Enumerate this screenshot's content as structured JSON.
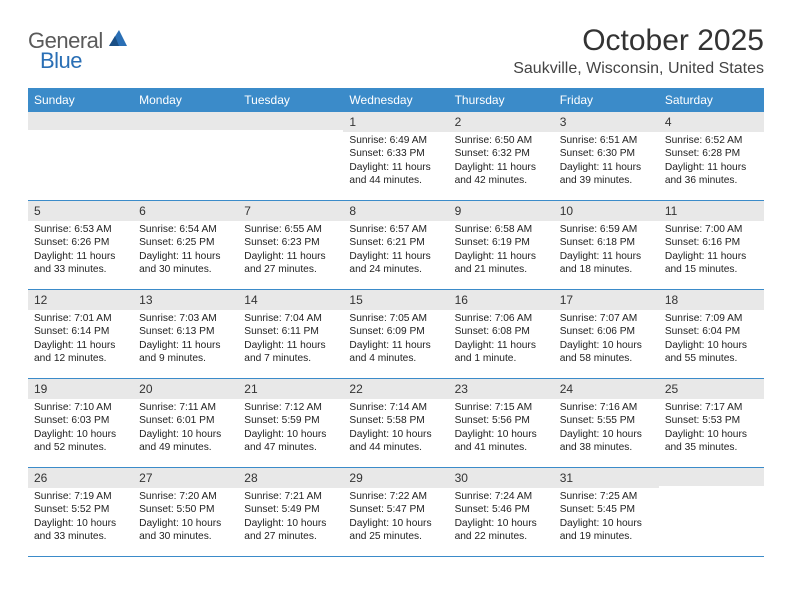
{
  "brand": {
    "general": "General",
    "blue": "Blue"
  },
  "title": "October 2025",
  "location": "Saukville, Wisconsin, United States",
  "colors": {
    "headerBar": "#3b8bc9",
    "dayNumBg": "#e8e8e8",
    "weekDivider": "#3b8bc9",
    "text": "#222222",
    "logoGray": "#5a5a5a",
    "logoBlue": "#2a6fb5"
  },
  "dayNames": [
    "Sunday",
    "Monday",
    "Tuesday",
    "Wednesday",
    "Thursday",
    "Friday",
    "Saturday"
  ],
  "weeks": [
    [
      {
        "num": "",
        "sr": "",
        "ss": "",
        "dl": ""
      },
      {
        "num": "",
        "sr": "",
        "ss": "",
        "dl": ""
      },
      {
        "num": "",
        "sr": "",
        "ss": "",
        "dl": ""
      },
      {
        "num": "1",
        "sr": "Sunrise: 6:49 AM",
        "ss": "Sunset: 6:33 PM",
        "dl": "Daylight: 11 hours and 44 minutes."
      },
      {
        "num": "2",
        "sr": "Sunrise: 6:50 AM",
        "ss": "Sunset: 6:32 PM",
        "dl": "Daylight: 11 hours and 42 minutes."
      },
      {
        "num": "3",
        "sr": "Sunrise: 6:51 AM",
        "ss": "Sunset: 6:30 PM",
        "dl": "Daylight: 11 hours and 39 minutes."
      },
      {
        "num": "4",
        "sr": "Sunrise: 6:52 AM",
        "ss": "Sunset: 6:28 PM",
        "dl": "Daylight: 11 hours and 36 minutes."
      }
    ],
    [
      {
        "num": "5",
        "sr": "Sunrise: 6:53 AM",
        "ss": "Sunset: 6:26 PM",
        "dl": "Daylight: 11 hours and 33 minutes."
      },
      {
        "num": "6",
        "sr": "Sunrise: 6:54 AM",
        "ss": "Sunset: 6:25 PM",
        "dl": "Daylight: 11 hours and 30 minutes."
      },
      {
        "num": "7",
        "sr": "Sunrise: 6:55 AM",
        "ss": "Sunset: 6:23 PM",
        "dl": "Daylight: 11 hours and 27 minutes."
      },
      {
        "num": "8",
        "sr": "Sunrise: 6:57 AM",
        "ss": "Sunset: 6:21 PM",
        "dl": "Daylight: 11 hours and 24 minutes."
      },
      {
        "num": "9",
        "sr": "Sunrise: 6:58 AM",
        "ss": "Sunset: 6:19 PM",
        "dl": "Daylight: 11 hours and 21 minutes."
      },
      {
        "num": "10",
        "sr": "Sunrise: 6:59 AM",
        "ss": "Sunset: 6:18 PM",
        "dl": "Daylight: 11 hours and 18 minutes."
      },
      {
        "num": "11",
        "sr": "Sunrise: 7:00 AM",
        "ss": "Sunset: 6:16 PM",
        "dl": "Daylight: 11 hours and 15 minutes."
      }
    ],
    [
      {
        "num": "12",
        "sr": "Sunrise: 7:01 AM",
        "ss": "Sunset: 6:14 PM",
        "dl": "Daylight: 11 hours and 12 minutes."
      },
      {
        "num": "13",
        "sr": "Sunrise: 7:03 AM",
        "ss": "Sunset: 6:13 PM",
        "dl": "Daylight: 11 hours and 9 minutes."
      },
      {
        "num": "14",
        "sr": "Sunrise: 7:04 AM",
        "ss": "Sunset: 6:11 PM",
        "dl": "Daylight: 11 hours and 7 minutes."
      },
      {
        "num": "15",
        "sr": "Sunrise: 7:05 AM",
        "ss": "Sunset: 6:09 PM",
        "dl": "Daylight: 11 hours and 4 minutes."
      },
      {
        "num": "16",
        "sr": "Sunrise: 7:06 AM",
        "ss": "Sunset: 6:08 PM",
        "dl": "Daylight: 11 hours and 1 minute."
      },
      {
        "num": "17",
        "sr": "Sunrise: 7:07 AM",
        "ss": "Sunset: 6:06 PM",
        "dl": "Daylight: 10 hours and 58 minutes."
      },
      {
        "num": "18",
        "sr": "Sunrise: 7:09 AM",
        "ss": "Sunset: 6:04 PM",
        "dl": "Daylight: 10 hours and 55 minutes."
      }
    ],
    [
      {
        "num": "19",
        "sr": "Sunrise: 7:10 AM",
        "ss": "Sunset: 6:03 PM",
        "dl": "Daylight: 10 hours and 52 minutes."
      },
      {
        "num": "20",
        "sr": "Sunrise: 7:11 AM",
        "ss": "Sunset: 6:01 PM",
        "dl": "Daylight: 10 hours and 49 minutes."
      },
      {
        "num": "21",
        "sr": "Sunrise: 7:12 AM",
        "ss": "Sunset: 5:59 PM",
        "dl": "Daylight: 10 hours and 47 minutes."
      },
      {
        "num": "22",
        "sr": "Sunrise: 7:14 AM",
        "ss": "Sunset: 5:58 PM",
        "dl": "Daylight: 10 hours and 44 minutes."
      },
      {
        "num": "23",
        "sr": "Sunrise: 7:15 AM",
        "ss": "Sunset: 5:56 PM",
        "dl": "Daylight: 10 hours and 41 minutes."
      },
      {
        "num": "24",
        "sr": "Sunrise: 7:16 AM",
        "ss": "Sunset: 5:55 PM",
        "dl": "Daylight: 10 hours and 38 minutes."
      },
      {
        "num": "25",
        "sr": "Sunrise: 7:17 AM",
        "ss": "Sunset: 5:53 PM",
        "dl": "Daylight: 10 hours and 35 minutes."
      }
    ],
    [
      {
        "num": "26",
        "sr": "Sunrise: 7:19 AM",
        "ss": "Sunset: 5:52 PM",
        "dl": "Daylight: 10 hours and 33 minutes."
      },
      {
        "num": "27",
        "sr": "Sunrise: 7:20 AM",
        "ss": "Sunset: 5:50 PM",
        "dl": "Daylight: 10 hours and 30 minutes."
      },
      {
        "num": "28",
        "sr": "Sunrise: 7:21 AM",
        "ss": "Sunset: 5:49 PM",
        "dl": "Daylight: 10 hours and 27 minutes."
      },
      {
        "num": "29",
        "sr": "Sunrise: 7:22 AM",
        "ss": "Sunset: 5:47 PM",
        "dl": "Daylight: 10 hours and 25 minutes."
      },
      {
        "num": "30",
        "sr": "Sunrise: 7:24 AM",
        "ss": "Sunset: 5:46 PM",
        "dl": "Daylight: 10 hours and 22 minutes."
      },
      {
        "num": "31",
        "sr": "Sunrise: 7:25 AM",
        "ss": "Sunset: 5:45 PM",
        "dl": "Daylight: 10 hours and 19 minutes."
      },
      {
        "num": "",
        "sr": "",
        "ss": "",
        "dl": ""
      }
    ]
  ]
}
